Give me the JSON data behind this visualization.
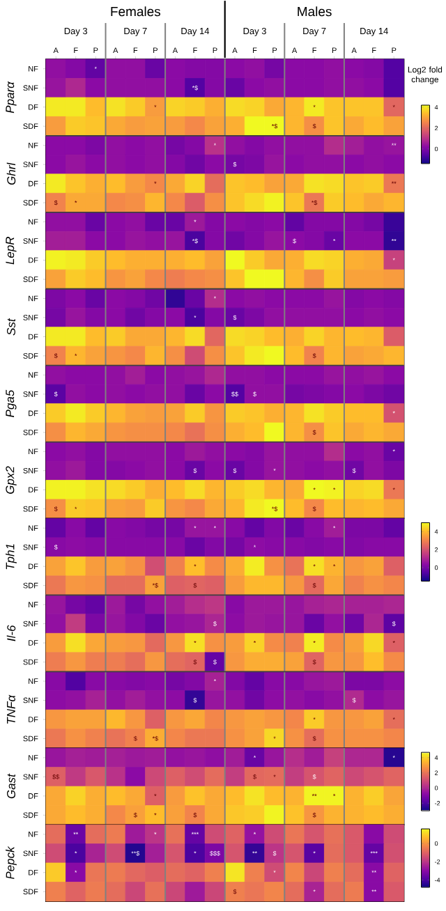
{
  "chart_data": [
    {
      "type": "heatmap",
      "annotations": [
        "Females",
        "Males",
        "Day 3",
        "Day 7",
        "Day 14",
        "Day 3",
        "Day 7",
        "Day 14",
        "Pparα",
        "Ghrl",
        "LepR",
        "Sst",
        "Pga5",
        "Gpx2"
      ],
      "clabel": "Log2 fold change",
      "categories": [
        "A",
        "F",
        "P",
        "A",
        "F",
        "P",
        "A",
        "F",
        "P",
        "A",
        "F",
        "P",
        "A",
        "F",
        "P",
        "A",
        "F",
        "P"
      ],
      "y_categories": [
        "NF",
        "SNF",
        "DF",
        "SDF",
        "NF",
        "SNF",
        "DF",
        "SDF",
        "NF",
        "SNF",
        "DF",
        "SDF",
        "NF",
        "SNF",
        "DF",
        "SDF",
        "NF",
        "SNF",
        "DF",
        "SDF",
        "NF",
        "SNF",
        "DF",
        "SDF"
      ],
      "cells": [
        [
          0.3,
          0.1,
          -0.4,
          0.3,
          0.3,
          -0.3,
          0.2,
          0.1,
          0.1,
          0.2,
          0.3,
          -0.1,
          0.2,
          0.2,
          0.3,
          0.2,
          0.1,
          -0.6
        ],
        [
          0.4,
          0.8,
          0.2,
          0.3,
          0.3,
          0.3,
          0.2,
          -0.6,
          0.1,
          -0.3,
          0.2,
          0.3,
          0.2,
          0.2,
          0.3,
          0.3,
          0.2,
          -0.6
        ],
        [
          4.0,
          4.0,
          3.4,
          3.9,
          3.6,
          2.9,
          3.7,
          3.6,
          3.2,
          3.8,
          3.7,
          3.1,
          3.3,
          4.0,
          3.5,
          3.5,
          3.5,
          2.0
        ],
        [
          2.9,
          3.6,
          3.5,
          3.1,
          2.9,
          3.0,
          2.9,
          2.6,
          3.0,
          3.2,
          4.3,
          4.3,
          3.3,
          2.7,
          3.5,
          3.1,
          3.4,
          3.0
        ],
        [
          0.2,
          0.2,
          0.0,
          0.3,
          0.2,
          0.3,
          -0.1,
          0.1,
          1.0,
          0.3,
          0.1,
          0.3,
          0.3,
          0.3,
          0.9,
          0.6,
          0.3,
          0.4
        ],
        [
          0.2,
          0.4,
          0.2,
          0.3,
          0.2,
          0.3,
          0.1,
          -0.2,
          0.2,
          -0.1,
          0.0,
          0.4,
          0.2,
          0.3,
          0.3,
          0.2,
          0.3,
          0.2
        ],
        [
          4.0,
          3.5,
          3.2,
          3.4,
          2.9,
          2.6,
          3.1,
          3.7,
          2.1,
          3.5,
          3.4,
          3.0,
          3.1,
          3.9,
          3.8,
          3.5,
          3.6,
          2.3
        ],
        [
          2.5,
          3.1,
          3.1,
          2.6,
          2.7,
          3.3,
          2.6,
          1.8,
          2.7,
          3.5,
          3.8,
          4.1,
          3.5,
          2.3,
          3.6,
          3.4,
          3.1,
          3.3
        ],
        [
          0.3,
          0.3,
          -0.3,
          0.2,
          0.3,
          -0.3,
          -0.3,
          0.5,
          0.1,
          0.2,
          0.1,
          0.2,
          -0.4,
          0.1,
          0.1,
          0.1,
          -0.1,
          -0.9
        ],
        [
          0.6,
          0.6,
          0.2,
          0.2,
          0.4,
          0.3,
          0.4,
          -0.7,
          0.1,
          -0.2,
          0.1,
          0.4,
          0.2,
          0.1,
          -0.3,
          0.2,
          0.2,
          -1.0
        ],
        [
          4.1,
          4.0,
          3.6,
          3.4,
          3.2,
          3.2,
          3.2,
          3.4,
          3.0,
          4.2,
          3.6,
          3.1,
          3.2,
          3.8,
          3.7,
          3.2,
          3.1,
          1.3
        ],
        [
          3.0,
          3.6,
          3.4,
          2.8,
          3.0,
          2.6,
          2.4,
          2.6,
          2.7,
          3.5,
          4.3,
          4.3,
          3.3,
          2.7,
          3.6,
          3.0,
          3.0,
          2.9
        ],
        [
          0.0,
          0.2,
          -0.3,
          0.2,
          0.1,
          -0.2,
          -1.0,
          -0.3,
          0.9,
          0.2,
          0.3,
          0.2,
          0.2,
          0.2,
          0.4,
          0.1,
          0.2,
          0.1
        ],
        [
          -0.1,
          0.4,
          0.1,
          0.2,
          -0.2,
          0.1,
          0.2,
          -0.7,
          0.1,
          -0.3,
          0.0,
          0.3,
          0.3,
          0.3,
          0.3,
          0.2,
          0.3,
          0.2
        ],
        [
          4.0,
          4.0,
          3.4,
          3.6,
          3.1,
          3.1,
          3.3,
          3.8,
          2.0,
          3.8,
          3.7,
          3.4,
          3.2,
          3.7,
          3.3,
          3.4,
          3.3,
          1.8
        ],
        [
          2.5,
          3.3,
          3.0,
          2.8,
          2.6,
          3.3,
          2.7,
          1.5,
          2.7,
          3.5,
          4.0,
          4.3,
          3.4,
          2.5,
          3.3,
          3.0,
          3.1,
          3.3
        ],
        [
          0.3,
          0.2,
          0.2,
          0.3,
          0.6,
          0.2,
          0.3,
          0.4,
          0.8,
          0.3,
          0.3,
          0.2,
          0.2,
          0.2,
          0.4,
          0.3,
          0.4,
          0.2
        ],
        [
          -0.5,
          0.3,
          0.2,
          0.3,
          0.2,
          0.3,
          0.3,
          -0.3,
          0.2,
          -0.6,
          0.3,
          0.3,
          -0.1,
          0.0,
          0.1,
          0.2,
          0.0,
          -0.2
        ],
        [
          3.6,
          4.0,
          3.6,
          3.3,
          3.0,
          2.9,
          3.0,
          3.6,
          2.8,
          3.6,
          3.5,
          3.2,
          3.3,
          3.9,
          3.6,
          3.4,
          3.4,
          1.6
        ],
        [
          2.7,
          3.3,
          3.1,
          2.8,
          2.7,
          2.7,
          2.6,
          2.2,
          2.7,
          3.2,
          3.4,
          4.2,
          3.3,
          2.7,
          3.5,
          3.1,
          3.3,
          3.1
        ],
        [
          0.2,
          0.3,
          0.1,
          0.3,
          0.3,
          0.3,
          0.2,
          0.5,
          0.3,
          0.2,
          0.1,
          0.4,
          0.3,
          0.3,
          0.9,
          0.2,
          0.3,
          -0.3
        ],
        [
          0.3,
          0.5,
          0.1,
          0.1,
          0.2,
          0.3,
          0.2,
          -0.3,
          0.2,
          -0.3,
          0.1,
          0.4,
          0.3,
          0.2,
          0.3,
          -0.2,
          0.3,
          0.0
        ],
        [
          4.1,
          4.1,
          3.9,
          3.8,
          3.6,
          3.2,
          3.4,
          3.8,
          3.3,
          3.6,
          3.8,
          3.3,
          3.1,
          4.2,
          4.1,
          3.7,
          3.8,
          2.3
        ],
        [
          2.7,
          3.6,
          3.5,
          3.0,
          2.9,
          3.6,
          2.8,
          2.6,
          3.1,
          3.3,
          4.0,
          4.3,
          3.4,
          2.6,
          3.4,
          3.3,
          3.4,
          3.1
        ]
      ],
      "cell_labels": [
        [
          null,
          null,
          "*",
          null,
          null,
          null,
          null,
          null,
          null,
          null,
          null,
          null,
          null,
          null,
          null,
          null,
          null,
          null
        ],
        [
          null,
          null,
          null,
          null,
          null,
          null,
          null,
          "*$",
          null,
          null,
          null,
          null,
          null,
          null,
          null,
          null,
          null,
          null
        ],
        [
          null,
          null,
          null,
          null,
          null,
          "*",
          null,
          null,
          null,
          null,
          null,
          null,
          null,
          "*",
          null,
          null,
          null,
          "*"
        ],
        [
          null,
          null,
          null,
          null,
          null,
          null,
          null,
          null,
          null,
          null,
          null,
          "*$",
          null,
          "$",
          null,
          null,
          null,
          null
        ],
        [
          null,
          null,
          null,
          null,
          null,
          null,
          null,
          null,
          "*",
          null,
          null,
          null,
          null,
          null,
          null,
          null,
          null,
          "**"
        ],
        [
          null,
          null,
          null,
          null,
          null,
          null,
          null,
          null,
          null,
          "$",
          null,
          null,
          null,
          null,
          null,
          null,
          null,
          null
        ],
        [
          null,
          null,
          null,
          null,
          null,
          "*",
          null,
          null,
          null,
          null,
          null,
          null,
          null,
          null,
          null,
          null,
          null,
          "**"
        ],
        [
          "$",
          "*",
          null,
          null,
          null,
          null,
          null,
          null,
          null,
          null,
          null,
          null,
          null,
          "*$",
          null,
          null,
          null,
          null
        ],
        [
          null,
          null,
          null,
          null,
          null,
          null,
          null,
          "*",
          null,
          null,
          null,
          null,
          null,
          null,
          null,
          null,
          null,
          null
        ],
        [
          null,
          null,
          null,
          null,
          null,
          null,
          null,
          "*$",
          null,
          null,
          null,
          null,
          "$",
          null,
          "*",
          null,
          null,
          "**"
        ],
        [
          null,
          null,
          null,
          null,
          null,
          null,
          null,
          null,
          null,
          null,
          null,
          null,
          null,
          null,
          null,
          null,
          null,
          "*"
        ],
        [
          null,
          null,
          null,
          null,
          null,
          null,
          null,
          null,
          null,
          null,
          null,
          null,
          null,
          null,
          null,
          null,
          null,
          null
        ],
        [
          null,
          null,
          null,
          null,
          null,
          null,
          null,
          null,
          "*",
          null,
          null,
          null,
          null,
          null,
          null,
          null,
          null,
          null
        ],
        [
          null,
          null,
          null,
          null,
          null,
          null,
          null,
          "*",
          null,
          "$",
          null,
          null,
          null,
          null,
          null,
          null,
          null,
          null
        ],
        [
          null,
          null,
          null,
          null,
          null,
          null,
          null,
          null,
          null,
          null,
          null,
          null,
          null,
          null,
          null,
          null,
          null,
          null
        ],
        [
          "$",
          "*",
          null,
          null,
          null,
          null,
          null,
          null,
          null,
          null,
          null,
          null,
          null,
          "$",
          null,
          null,
          null,
          null
        ],
        [
          null,
          null,
          null,
          null,
          null,
          null,
          null,
          null,
          null,
          null,
          null,
          null,
          null,
          null,
          null,
          null,
          null,
          null
        ],
        [
          "$",
          null,
          null,
          null,
          null,
          null,
          null,
          null,
          null,
          "$$",
          "$",
          null,
          null,
          null,
          null,
          null,
          null,
          null
        ],
        [
          null,
          null,
          null,
          null,
          null,
          null,
          null,
          null,
          null,
          null,
          null,
          null,
          null,
          null,
          null,
          null,
          null,
          "*"
        ],
        [
          null,
          null,
          null,
          null,
          null,
          null,
          null,
          null,
          null,
          null,
          null,
          null,
          null,
          "$",
          null,
          null,
          null,
          null
        ],
        [
          null,
          null,
          null,
          null,
          null,
          null,
          null,
          null,
          null,
          null,
          null,
          null,
          null,
          null,
          null,
          null,
          null,
          "*"
        ],
        [
          null,
          null,
          null,
          null,
          null,
          null,
          null,
          "$",
          null,
          "$",
          null,
          "*",
          null,
          null,
          null,
          "$",
          null,
          null
        ],
        [
          null,
          null,
          null,
          null,
          null,
          null,
          null,
          null,
          null,
          null,
          null,
          null,
          null,
          "*",
          "*",
          null,
          null,
          "*"
        ],
        [
          "$",
          "*",
          null,
          null,
          null,
          null,
          null,
          null,
          null,
          null,
          null,
          "*$",
          null,
          "$",
          null,
          null,
          null,
          null
        ]
      ],
      "clim": [
        -1.4,
        4.2
      ],
      "cticks": [
        0,
        2,
        4
      ]
    },
    {
      "type": "heatmap",
      "tick_labels": "y",
      "annotations": [
        "Tph1",
        "Il-6",
        "TNFα"
      ],
      "categories": [
        null,
        null,
        null,
        null,
        null,
        null,
        null,
        null,
        null,
        null,
        null,
        null,
        null,
        null,
        null,
        null,
        null,
        null
      ],
      "y_categories": [
        "NF",
        "SNF",
        "DF",
        "SDF",
        "NF",
        "SNF",
        "DF",
        "SDF",
        "NF",
        "SNF",
        "DF",
        "SDF"
      ],
      "cells": [
        [
          -0.3,
          0.3,
          -0.3,
          0.3,
          0.2,
          0.0,
          0.0,
          0.6,
          0.6,
          0.3,
          -0.3,
          0.2,
          -0.2,
          0.3,
          0.8,
          0.1,
          0.1,
          -0.3
        ],
        [
          0.3,
          0.4,
          0.3,
          0.3,
          0.3,
          0.3,
          0.3,
          -0.2,
          0.2,
          0.0,
          0.4,
          0.3,
          0.3,
          0.2,
          0.3,
          0.2,
          0.3,
          0.3
        ],
        [
          3.6,
          4.2,
          3.5,
          3.6,
          3.3,
          1.9,
          3.0,
          4.1,
          3.2,
          3.8,
          4.8,
          3.3,
          2.7,
          4.6,
          3.9,
          3.4,
          3.6,
          2.3
        ],
        [
          2.8,
          3.4,
          3.3,
          2.6,
          2.6,
          3.6,
          2.3,
          2.4,
          2.3,
          3.5,
          4.0,
          4.0,
          3.4,
          2.5,
          3.7,
          3.0,
          3.3,
          3.1
        ],
        [
          0.6,
          0.0,
          -0.3,
          0.7,
          0.0,
          0.5,
          0.8,
          1.2,
          1.4,
          0.3,
          0.7,
          0.7,
          0.6,
          0.9,
          1.0,
          0.9,
          0.9,
          1.0
        ],
        [
          0.5,
          1.5,
          0.1,
          0.6,
          0.2,
          -0.2,
          0.5,
          0.6,
          1.0,
          0.4,
          0.7,
          0.6,
          0.6,
          -0.2,
          0.5,
          -0.1,
          1.0,
          -0.4
        ],
        [
          3.5,
          4.6,
          3.7,
          3.5,
          3.4,
          2.5,
          3.4,
          4.6,
          3.3,
          3.5,
          4.4,
          3.2,
          3.0,
          4.8,
          3.2,
          3.6,
          4.5,
          2.3
        ],
        [
          2.9,
          3.4,
          2.9,
          2.9,
          2.6,
          3.4,
          2.6,
          2.4,
          -0.3,
          3.4,
          3.8,
          3.8,
          3.6,
          2.4,
          3.4,
          3.4,
          4.1,
          3.2
        ],
        [
          0.3,
          -0.6,
          0.3,
          0.3,
          0.2,
          0.3,
          0.0,
          0.2,
          0.9,
          0.2,
          -0.3,
          0.3,
          0.3,
          0.6,
          0.7,
          0.1,
          0.1,
          0.4
        ],
        [
          0.4,
          0.5,
          0.9,
          0.5,
          0.8,
          0.5,
          0.4,
          -1.0,
          0.6,
          0.5,
          -0.1,
          0.4,
          0.5,
          0.3,
          0.5,
          1.1,
          0.4,
          0.6
        ],
        [
          3.4,
          3.6,
          3.6,
          4.0,
          3.4,
          2.3,
          3.4,
          3.7,
          3.1,
          3.4,
          3.6,
          3.4,
          3.1,
          4.3,
          3.4,
          3.4,
          3.6,
          2.6
        ],
        [
          2.8,
          3.3,
          3.0,
          2.7,
          3.0,
          3.8,
          3.1,
          2.8,
          2.8,
          3.3,
          3.6,
          4.5,
          3.3,
          2.6,
          3.3,
          3.3,
          3.3,
          3.1
        ]
      ],
      "cell_labels": [
        [
          null,
          null,
          null,
          null,
          null,
          null,
          null,
          "*",
          "*",
          null,
          null,
          null,
          null,
          null,
          "*",
          null,
          null,
          null
        ],
        [
          "$",
          null,
          null,
          null,
          null,
          null,
          null,
          null,
          null,
          null,
          "*",
          null,
          null,
          null,
          null,
          null,
          null,
          null
        ],
        [
          null,
          null,
          null,
          null,
          null,
          null,
          null,
          "*",
          null,
          null,
          null,
          null,
          null,
          "*",
          "*",
          null,
          null,
          null
        ],
        [
          null,
          null,
          null,
          null,
          null,
          "*$",
          null,
          "$",
          null,
          null,
          null,
          null,
          null,
          "$",
          null,
          null,
          null,
          null
        ],
        [
          null,
          null,
          null,
          null,
          null,
          null,
          null,
          null,
          null,
          null,
          null,
          null,
          null,
          null,
          null,
          null,
          null,
          null
        ],
        [
          null,
          null,
          null,
          null,
          null,
          null,
          null,
          null,
          "$",
          null,
          null,
          null,
          null,
          null,
          null,
          null,
          null,
          "$"
        ],
        [
          null,
          null,
          null,
          null,
          null,
          null,
          null,
          "*",
          null,
          null,
          "*",
          null,
          null,
          "*",
          null,
          null,
          null,
          "*"
        ],
        [
          null,
          null,
          null,
          null,
          null,
          null,
          null,
          "$",
          "$",
          null,
          null,
          null,
          null,
          "$",
          null,
          null,
          null,
          null
        ],
        [
          null,
          null,
          null,
          null,
          null,
          null,
          null,
          null,
          "*",
          null,
          null,
          null,
          null,
          null,
          null,
          null,
          null,
          null
        ],
        [
          null,
          null,
          null,
          null,
          null,
          null,
          null,
          "$",
          null,
          null,
          null,
          null,
          null,
          null,
          null,
          "$",
          null,
          null
        ],
        [
          null,
          null,
          null,
          null,
          null,
          null,
          null,
          null,
          null,
          null,
          null,
          null,
          null,
          "*",
          null,
          null,
          null,
          "*"
        ],
        [
          null,
          null,
          null,
          null,
          "$",
          "*$",
          null,
          null,
          null,
          null,
          null,
          "*",
          null,
          "$",
          null,
          null,
          null,
          null
        ]
      ],
      "clim": [
        -1.5,
        5
      ],
      "cticks": [
        0,
        2,
        4
      ]
    },
    {
      "type": "heatmap",
      "tick_labels": "y",
      "annotations": [
        "Gast"
      ],
      "categories": [
        null,
        null,
        null,
        null,
        null,
        null,
        null,
        null,
        null,
        null,
        null,
        null,
        null,
        null,
        null,
        null,
        null,
        null
      ],
      "y_categories": [
        "NF",
        "SNF",
        "DF",
        "SDF"
      ],
      "cells": [
        [
          -0.5,
          -0.2,
          -0.3,
          -0.2,
          -0.4,
          -0.3,
          -0.6,
          -0.5,
          -0.7,
          -0.3,
          -1.5,
          -0.5,
          0.2,
          -0.3,
          0.7,
          0.0,
          0.0,
          -2.6
        ],
        [
          1.5,
          0.5,
          1.3,
          0.3,
          -0.8,
          0.9,
          1.5,
          1.0,
          1.8,
          0.6,
          1.7,
          1.8,
          0.6,
          1.2,
          1.6,
          0.9,
          1.2,
          1.6
        ],
        [
          3.2,
          4.0,
          3.3,
          3.6,
          3.2,
          1.5,
          2.9,
          3.7,
          3.2,
          3.6,
          4.3,
          3.6,
          3.4,
          4.6,
          4.6,
          3.4,
          3.9,
          3.1
        ],
        [
          3.2,
          3.6,
          3.3,
          2.5,
          3.0,
          3.6,
          3.0,
          2.4,
          3.2,
          3.8,
          3.9,
          4.6,
          3.7,
          2.8,
          3.4,
          3.4,
          3.6,
          3.3
        ]
      ],
      "cell_labels": [
        [
          null,
          null,
          null,
          null,
          null,
          null,
          null,
          null,
          null,
          null,
          "*",
          null,
          null,
          null,
          null,
          null,
          null,
          "*"
        ],
        [
          "$$",
          null,
          null,
          null,
          null,
          null,
          null,
          null,
          null,
          null,
          "$",
          "*",
          null,
          "$",
          null,
          null,
          null,
          null
        ],
        [
          null,
          null,
          null,
          null,
          null,
          "*",
          null,
          null,
          null,
          null,
          null,
          null,
          null,
          "**",
          "*",
          null,
          null,
          null
        ],
        [
          null,
          null,
          null,
          null,
          "$",
          "*",
          null,
          "$",
          null,
          null,
          null,
          null,
          null,
          "$",
          null,
          null,
          null,
          null
        ]
      ],
      "clim": [
        -3,
        4.7
      ],
      "cticks": [
        -2,
        0,
        2,
        4
      ]
    },
    {
      "type": "heatmap",
      "tick_labels": "y",
      "annotations": [
        "Pepck"
      ],
      "categories": [
        null,
        null,
        null,
        null,
        null,
        null,
        null,
        null,
        null,
        null,
        null,
        null,
        null,
        null,
        null,
        null,
        null,
        null
      ],
      "y_categories": [
        "NF",
        "SNF",
        "DF",
        "SDF"
      ],
      "cells": [
        [
          -0.8,
          -3.5,
          -0.8,
          -0.5,
          -2.6,
          -2.0,
          -0.7,
          -3.6,
          -1.5,
          -1.0,
          -2.8,
          -1.5,
          -0.6,
          -1.3,
          -0.7,
          -1.2,
          -3.0,
          -1.5
        ],
        [
          -1.5,
          -4.0,
          -2.4,
          -1.5,
          -4.5,
          -2.5,
          -1.3,
          -4.0,
          -3.2,
          -1.3,
          -4.3,
          -2.0,
          -1.3,
          -3.8,
          -0.8,
          -1.2,
          -3.6,
          -1.4
        ],
        [
          0.9,
          -3.0,
          -0.6,
          -0.5,
          -0.9,
          -1.1,
          -0.8,
          -1.0,
          -0.4,
          1.3,
          -0.4,
          -1.5,
          -0.3,
          -1.6,
          -0.4,
          -0.8,
          -3.0,
          -1.0
        ],
        [
          -0.4,
          -1.0,
          -0.5,
          -0.8,
          -1.6,
          -0.7,
          -1.6,
          -2.6,
          -1.6,
          -0.4,
          -0.6,
          -0.3,
          -0.8,
          -2.4,
          -0.8,
          -0.5,
          -3.0,
          -1.2
        ]
      ],
      "cell_labels": [
        [
          null,
          "**",
          null,
          null,
          null,
          "*",
          null,
          "***",
          null,
          null,
          "*",
          null,
          null,
          null,
          null,
          null,
          null,
          null
        ],
        [
          null,
          "*",
          null,
          null,
          "**$",
          null,
          null,
          "*",
          "$$$",
          null,
          "**",
          "$",
          null,
          "*",
          null,
          null,
          "***",
          null
        ],
        [
          null,
          "*",
          null,
          null,
          null,
          null,
          null,
          null,
          null,
          null,
          null,
          "*",
          null,
          null,
          null,
          null,
          "**",
          null
        ],
        [
          null,
          null,
          null,
          null,
          null,
          null,
          null,
          null,
          null,
          "$",
          null,
          null,
          null,
          "*",
          null,
          null,
          "**",
          null
        ]
      ],
      "clim": [
        -4.8,
        1.6
      ],
      "cticks": [
        -4,
        -2,
        0
      ]
    }
  ]
}
